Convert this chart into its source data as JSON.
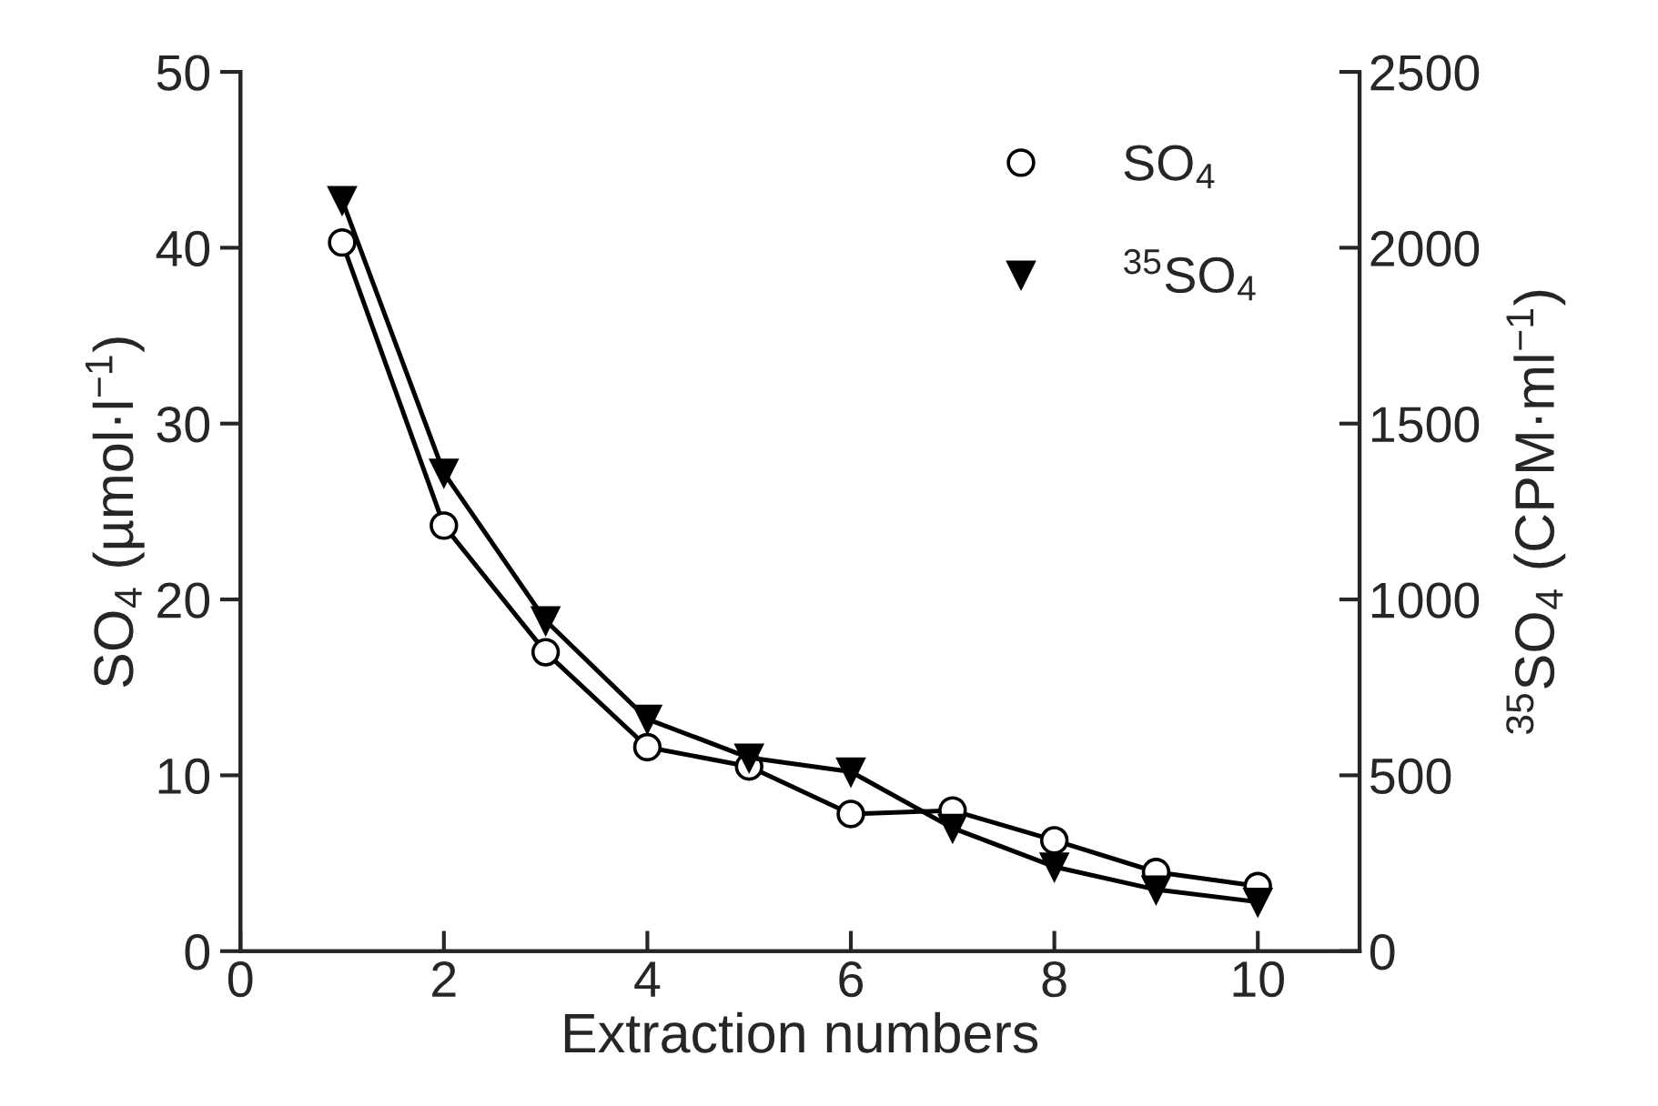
{
  "chart_data": {
    "type": "line",
    "xlabel": "Extraction numbers",
    "ylabel": "SO$_{4}$ (µmol·l$^{−1}$)",
    "y2label": "$^{35}$SO$_{4}$ (CPM·ml$^{−1}$)",
    "x": [
      1,
      2,
      3,
      4,
      5,
      6,
      7,
      8,
      9,
      10
    ],
    "series": [
      {
        "name": "SO$_{4}$",
        "color": "#000000",
        "marker": "circle",
        "values": [
          40.3,
          24.2,
          17,
          11.6,
          10.5,
          7.8,
          8,
          6.3,
          4.5,
          3.7
        ]
      },
      {
        "name": "$^{35}$SO$_{4}$",
        "color": "#000000",
        "marker": "triangle",
        "axis": "y2",
        "values": [
          2135,
          1360,
          940,
          660,
          550,
          510,
          350,
          240,
          175,
          140
        ]
      }
    ],
    "xlim": [
      0,
      11
    ],
    "xticks": [
      0,
      2,
      4,
      6,
      8,
      10
    ],
    "ylim": [
      0,
      50
    ],
    "yticks": [
      0,
      10,
      20,
      30,
      40,
      50
    ],
    "y2lim": [
      0,
      2500
    ],
    "y2ticks": [
      0,
      500,
      1000,
      1500,
      2000,
      2500
    ],
    "grid": false,
    "legend": "top right",
    "line_style": "solid"
  }
}
